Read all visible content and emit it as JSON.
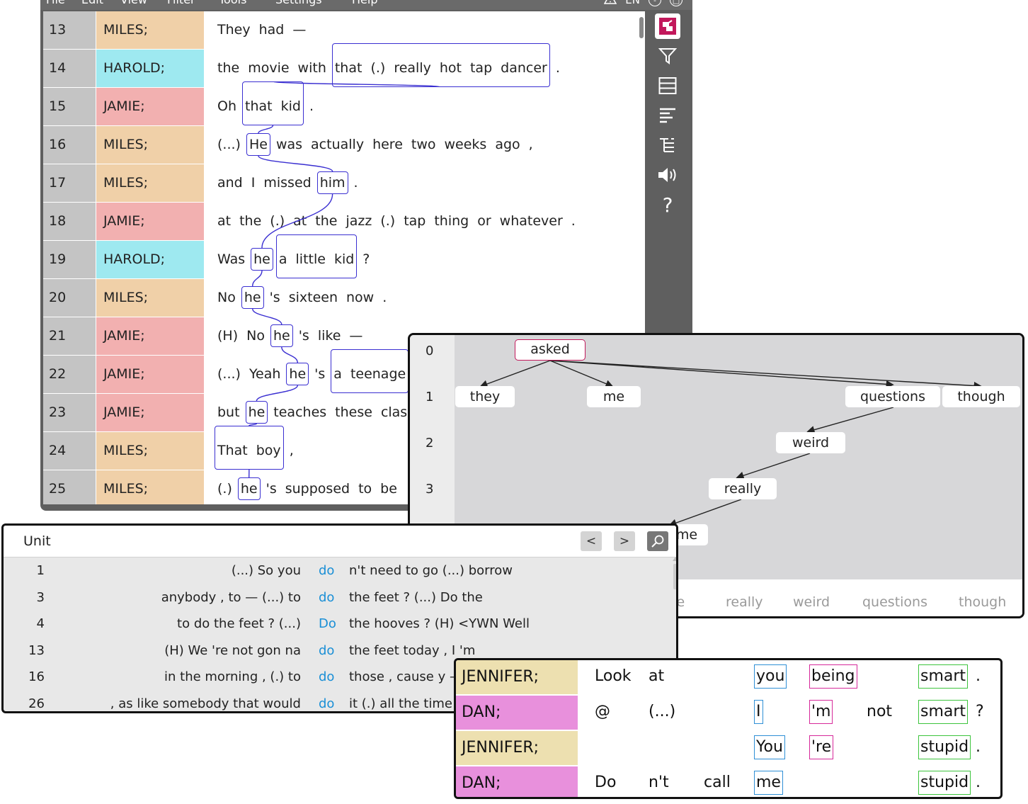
{
  "menu": {
    "items": [
      "File",
      "Edit",
      "View",
      "Filter",
      "Tools",
      "Settings",
      "Help"
    ],
    "language": "EN",
    "minimize": "-",
    "maximize": "□"
  },
  "toolbar_icons": [
    "logo-icon",
    "filter-icon",
    "table-icon",
    "align-left-icon",
    "tree-icon",
    "speaker-icon",
    "help-icon"
  ],
  "help_label": "?",
  "speaker_colors": {
    "MILES;": "#f0d0a8",
    "HAROLD;": "#9ee9f0",
    "JAMIE;": "#f2b0b0"
  },
  "transcript": {
    "rows": [
      {
        "num": "13",
        "speaker": "MILES;",
        "words": [
          "They",
          "had",
          "—"
        ]
      },
      {
        "num": "14",
        "speaker": "HAROLD;",
        "words": [
          "the",
          "movie",
          "with",
          "that",
          "(.)",
          "really",
          "hot",
          "tap",
          "dancer",
          "."
        ]
      },
      {
        "num": "15",
        "speaker": "JAMIE;",
        "words": [
          "Oh",
          "that",
          "kid",
          "."
        ]
      },
      {
        "num": "16",
        "speaker": "MILES;",
        "words": [
          "(...)",
          "He",
          "was",
          "actually",
          "here",
          "two",
          "weeks",
          "ago",
          ","
        ]
      },
      {
        "num": "17",
        "speaker": "MILES;",
        "words": [
          "and",
          "I",
          "missed",
          "him",
          "."
        ]
      },
      {
        "num": "18",
        "speaker": "JAMIE;",
        "words": [
          "at",
          "the",
          "(.)",
          "at",
          "the",
          "jazz",
          "(.)",
          "tap",
          "thing",
          "or",
          "whatever",
          "."
        ]
      },
      {
        "num": "19",
        "speaker": "HAROLD;",
        "words": [
          "Was",
          "he",
          "a",
          "little",
          "kid",
          "?"
        ]
      },
      {
        "num": "20",
        "speaker": "MILES;",
        "words": [
          "No",
          "he",
          "'s",
          "sixteen",
          "now",
          "."
        ]
      },
      {
        "num": "21",
        "speaker": "JAMIE;",
        "words": [
          "(H)",
          "No",
          "he",
          "'s",
          "like",
          "—"
        ]
      },
      {
        "num": "22",
        "speaker": "JAMIE;",
        "words": [
          "(...)",
          "Yeah",
          "he",
          "'s",
          "a",
          "teenage"
        ]
      },
      {
        "num": "23",
        "speaker": "JAMIE;",
        "words": [
          "but",
          "he",
          "teaches",
          "these",
          "clas"
        ]
      },
      {
        "num": "24",
        "speaker": "MILES;",
        "words": [
          "That",
          "boy",
          ","
        ]
      },
      {
        "num": "25",
        "speaker": "MILES;",
        "words": [
          "(.)",
          "he",
          "'s",
          "supposed",
          "to",
          "be"
        ]
      }
    ]
  },
  "tree": {
    "levels": [
      "0",
      "1",
      "2",
      "3"
    ],
    "nodes": {
      "asked": "asked",
      "they": "they",
      "me": "me",
      "questions": "questions",
      "though": "though",
      "weird": "weird",
      "really": "really",
      "me2": "me"
    },
    "bottom_words": [
      "me",
      "really",
      "weird",
      "questions",
      "though"
    ]
  },
  "concordance": {
    "title": "Unit",
    "prev": "<",
    "next": ">",
    "rows": [
      {
        "num": "1",
        "left": "(...) So you",
        "kw": "do",
        "right": "n't need to go (...) borrow"
      },
      {
        "num": "3",
        "left": "anybody , to — (...) to",
        "kw": "do",
        "right": "the feet ? (...) Do the"
      },
      {
        "num": "4",
        "left": "to do the feet ? (...)",
        "kw": "Do",
        "right": "the hooves ? (H) <YWN Well"
      },
      {
        "num": "13",
        "left": "(H) We 're not gon na",
        "kw": "do",
        "right": "the feet today , I 'm"
      },
      {
        "num": "16",
        "left": "in the morning , (.) to",
        "kw": "do",
        "right": "those , cause y —"
      },
      {
        "num": "26",
        "left": ", as like somebody that would",
        "kw": "do",
        "right": "it (.) all the time ."
      }
    ]
  },
  "alignment": {
    "speaker_colors": {
      "JENNIFER;": "#ede0b0",
      "DAN;": "#e890dc"
    },
    "box_colors": {
      "blue": "#2e8fd6",
      "pink": "#d6299a",
      "green": "#3cc43c"
    },
    "rows": [
      {
        "speaker": "JENNIFER;",
        "c1": "Look",
        "c2": "at",
        "c3": "",
        "you": "you",
        "be": "being",
        "neg": "",
        "adj": "smart",
        "p": "."
      },
      {
        "speaker": "DAN;",
        "c1": "@",
        "c2": "(...)",
        "c3": "",
        "you": "I",
        "be": "'m",
        "neg": "not",
        "adj": "smart",
        "p": "?"
      },
      {
        "speaker": "JENNIFER;",
        "c1": "",
        "c2": "",
        "c3": "",
        "you": "You",
        "be": "'re",
        "neg": "",
        "adj": "stupid",
        "p": "."
      },
      {
        "speaker": "DAN;",
        "c1": "Do",
        "c2": "n't",
        "c3": "call",
        "you": "me",
        "be": "",
        "neg": "",
        "adj": "stupid",
        "p": "."
      }
    ]
  }
}
